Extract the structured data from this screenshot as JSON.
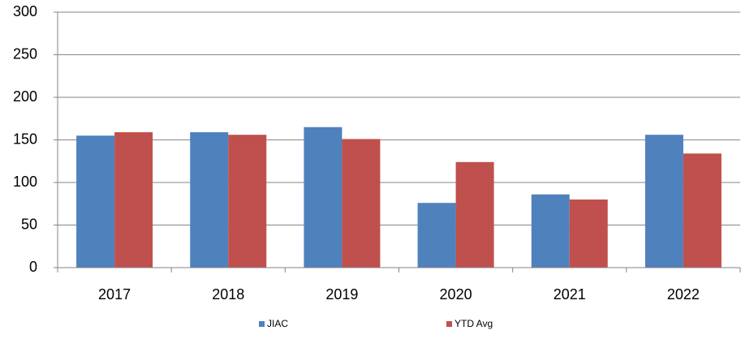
{
  "chart_data": {
    "type": "bar",
    "categories": [
      "2017",
      "2018",
      "2019",
      "2020",
      "2021",
      "2022"
    ],
    "series": [
      {
        "name": "JIAC",
        "color": "#4f81bd",
        "values": [
          155,
          159,
          165,
          76,
          86,
          156
        ]
      },
      {
        "name": "YTD Avg",
        "color": "#c0504d",
        "values": [
          159,
          156,
          151,
          124,
          80,
          134
        ]
      }
    ],
    "ylim": [
      0,
      300
    ],
    "yticks": [
      0,
      50,
      100,
      150,
      200,
      250,
      300
    ],
    "grid": true
  }
}
